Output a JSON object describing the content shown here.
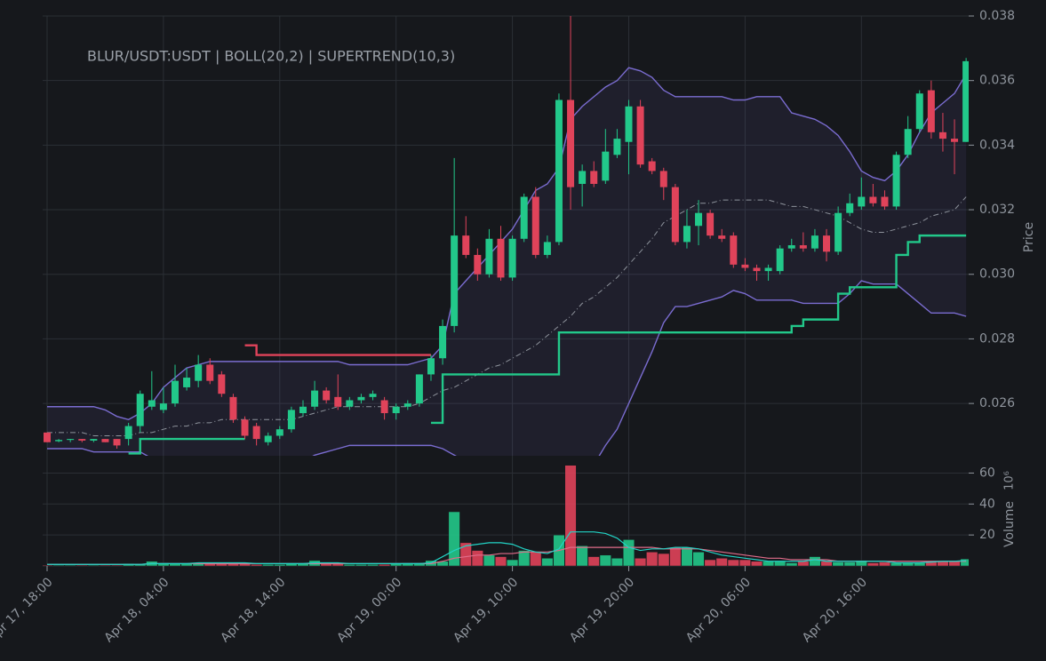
{
  "chart_data": {
    "type": "candlestick",
    "title": "BLUR/USDT:USDT | BOLL(20,2) | SUPERTREND(10,3)",
    "ylabel": "Price",
    "volume_label": "Volume",
    "volume_offset": "10⁶",
    "x": [
      "Apr 17, 18:00",
      "Apr 17, 19:00",
      "Apr 17, 20:00",
      "Apr 17, 21:00",
      "Apr 17, 22:00",
      "Apr 17, 23:00",
      "Apr 18, 00:00",
      "Apr 18, 01:00",
      "Apr 18, 02:00",
      "Apr 18, 03:00",
      "Apr 18, 04:00",
      "Apr 18, 05:00",
      "Apr 18, 06:00",
      "Apr 18, 07:00",
      "Apr 18, 08:00",
      "Apr 18, 09:00",
      "Apr 18, 10:00",
      "Apr 18, 11:00",
      "Apr 18, 12:00",
      "Apr 18, 13:00",
      "Apr 18, 14:00",
      "Apr 18, 15:00",
      "Apr 18, 16:00",
      "Apr 18, 17:00",
      "Apr 18, 18:00",
      "Apr 18, 19:00",
      "Apr 18, 20:00",
      "Apr 18, 21:00",
      "Apr 18, 22:00",
      "Apr 18, 23:00",
      "Apr 19, 00:00",
      "Apr 19, 01:00",
      "Apr 19, 02:00",
      "Apr 19, 03:00",
      "Apr 19, 04:00",
      "Apr 19, 05:00",
      "Apr 19, 06:00",
      "Apr 19, 07:00",
      "Apr 19, 08:00",
      "Apr 19, 09:00",
      "Apr 19, 10:00",
      "Apr 19, 11:00",
      "Apr 19, 12:00",
      "Apr 19, 13:00",
      "Apr 19, 14:00",
      "Apr 19, 15:00",
      "Apr 19, 16:00",
      "Apr 19, 17:00",
      "Apr 19, 18:00",
      "Apr 19, 19:00",
      "Apr 19, 20:00",
      "Apr 19, 21:00",
      "Apr 19, 22:00",
      "Apr 19, 23:00",
      "Apr 20, 00:00",
      "Apr 20, 01:00",
      "Apr 20, 02:00",
      "Apr 20, 03:00",
      "Apr 20, 04:00",
      "Apr 20, 05:00",
      "Apr 20, 06:00",
      "Apr 20, 07:00",
      "Apr 20, 08:00",
      "Apr 20, 09:00",
      "Apr 20, 10:00",
      "Apr 20, 11:00",
      "Apr 20, 12:00",
      "Apr 20, 13:00",
      "Apr 20, 14:00",
      "Apr 20, 15:00",
      "Apr 20, 16:00",
      "Apr 20, 17:00",
      "Apr 20, 18:00",
      "Apr 20, 19:00",
      "Apr 20, 20:00",
      "Apr 20, 21:00",
      "Apr 20, 22:00",
      "Apr 20, 23:00",
      "Apr 21, 00:00",
      "Apr 21, 01:00"
    ],
    "xticks": [
      "Apr 17, 18:00",
      "Apr 18, 04:00",
      "Apr 18, 14:00",
      "Apr 19, 00:00",
      "Apr 19, 10:00",
      "Apr 19, 20:00",
      "Apr 20, 06:00",
      "Apr 20, 16:00"
    ],
    "open": [
      0.0251,
      0.02483,
      0.02487,
      0.0249,
      0.02485,
      0.0249,
      0.0249,
      0.0249,
      0.0253,
      0.0259,
      0.0258,
      0.026,
      0.0265,
      0.0267,
      0.0272,
      0.0269,
      0.0262,
      0.0255,
      0.0253,
      0.0248,
      0.025,
      0.0252,
      0.0257,
      0.0259,
      0.0264,
      0.0262,
      0.0259,
      0.0261,
      0.0262,
      0.0261,
      0.0257,
      0.0259,
      0.026,
      0.0269,
      0.0274,
      0.0284,
      0.0312,
      0.0306,
      0.03,
      0.0311,
      0.0299,
      0.0311,
      0.0324,
      0.0306,
      0.031,
      0.0354,
      0.0328,
      0.0332,
      0.0329,
      0.0337,
      0.0341,
      0.0352,
      0.0335,
      0.0332,
      0.0327,
      0.031,
      0.0315,
      0.0319,
      0.0312,
      0.0312,
      0.0303,
      0.0302,
      0.0301,
      0.0301,
      0.0308,
      0.0309,
      0.0308,
      0.0312,
      0.0307,
      0.0319,
      0.0321,
      0.0324,
      0.0324,
      0.0321,
      0.0337,
      0.0345,
      0.0357,
      0.0344,
      0.0342,
      0.0341
    ],
    "high": [
      0.0251,
      0.0249,
      0.0249,
      0.0249,
      0.0249,
      0.0249,
      0.0249,
      0.0254,
      0.0264,
      0.027,
      0.0265,
      0.0272,
      0.0271,
      0.0275,
      0.0274,
      0.027,
      0.0263,
      0.0256,
      0.0254,
      0.0251,
      0.0253,
      0.0259,
      0.0261,
      0.0267,
      0.0265,
      0.0269,
      0.0262,
      0.0263,
      0.0264,
      0.0262,
      0.026,
      0.0261,
      0.0269,
      0.0275,
      0.0286,
      0.0336,
      0.0318,
      0.0308,
      0.0314,
      0.0315,
      0.0312,
      0.0325,
      0.0327,
      0.0312,
      0.0356,
      0.038,
      0.0334,
      0.0335,
      0.0345,
      0.0345,
      0.0354,
      0.0354,
      0.0336,
      0.0333,
      0.0328,
      0.032,
      0.0323,
      0.032,
      0.0314,
      0.0313,
      0.0305,
      0.0303,
      0.0303,
      0.0309,
      0.0311,
      0.0313,
      0.0314,
      0.0314,
      0.0321,
      0.0325,
      0.033,
      0.0328,
      0.0326,
      0.0338,
      0.0349,
      0.0357,
      0.036,
      0.035,
      0.0348,
      0.0367
    ],
    "low": [
      0.0248,
      0.0248,
      0.0248,
      0.0248,
      0.0248,
      0.0248,
      0.0246,
      0.0247,
      0.0251,
      0.0258,
      0.0257,
      0.0259,
      0.0264,
      0.0265,
      0.0266,
      0.0262,
      0.0254,
      0.0249,
      0.0247,
      0.0247,
      0.0249,
      0.0251,
      0.0256,
      0.0258,
      0.026,
      0.0258,
      0.0258,
      0.026,
      0.0261,
      0.0255,
      0.0255,
      0.0258,
      0.0259,
      0.0267,
      0.0272,
      0.0282,
      0.0305,
      0.0298,
      0.0299,
      0.0298,
      0.0298,
      0.031,
      0.0305,
      0.0305,
      0.0309,
      0.032,
      0.0321,
      0.0327,
      0.0328,
      0.0336,
      0.0331,
      0.0333,
      0.0331,
      0.0323,
      0.0309,
      0.0308,
      0.0309,
      0.0311,
      0.031,
      0.0302,
      0.0301,
      0.0298,
      0.0298,
      0.03,
      0.0307,
      0.0307,
      0.0307,
      0.0304,
      0.0306,
      0.0318,
      0.032,
      0.0321,
      0.032,
      0.032,
      0.0336,
      0.0344,
      0.0342,
      0.0338,
      0.0331,
      0.0341
    ],
    "close": [
      0.0248,
      0.02487,
      0.0249,
      0.02485,
      0.0249,
      0.0248,
      0.0247,
      0.0253,
      0.0263,
      0.0261,
      0.026,
      0.0267,
      0.0268,
      0.0272,
      0.0267,
      0.0263,
      0.0255,
      0.025,
      0.0249,
      0.025,
      0.0252,
      0.0258,
      0.0259,
      0.0264,
      0.0261,
      0.0259,
      0.0261,
      0.0262,
      0.0263,
      0.0257,
      0.0259,
      0.026,
      0.0269,
      0.0274,
      0.0284,
      0.0312,
      0.0306,
      0.03,
      0.0311,
      0.0299,
      0.0311,
      0.0324,
      0.0306,
      0.031,
      0.0354,
      0.0327,
      0.0332,
      0.0328,
      0.0338,
      0.0342,
      0.0352,
      0.0334,
      0.0332,
      0.0327,
      0.031,
      0.0315,
      0.0319,
      0.0312,
      0.0311,
      0.0303,
      0.0302,
      0.0301,
      0.0302,
      0.0308,
      0.0309,
      0.0308,
      0.0312,
      0.0307,
      0.0319,
      0.0322,
      0.0324,
      0.0322,
      0.0321,
      0.0337,
      0.0345,
      0.0356,
      0.0344,
      0.0342,
      0.0341,
      0.0366
    ],
    "boll_upper": [
      0.0259,
      0.0259,
      0.0259,
      0.0259,
      0.0259,
      0.0258,
      0.0256,
      0.0255,
      0.0257,
      0.026,
      0.0265,
      0.0268,
      0.0271,
      0.0272,
      0.0273,
      0.0273,
      0.0273,
      0.0273,
      0.0273,
      0.0273,
      0.0273,
      0.0273,
      0.0273,
      0.0273,
      0.0273,
      0.0273,
      0.0272,
      0.0272,
      0.0272,
      0.0272,
      0.0272,
      0.0272,
      0.0273,
      0.0274,
      0.0278,
      0.0294,
      0.0298,
      0.0302,
      0.0306,
      0.031,
      0.0314,
      0.032,
      0.0326,
      0.0328,
      0.0333,
      0.0348,
      0.0352,
      0.0355,
      0.0358,
      0.036,
      0.0364,
      0.0363,
      0.0361,
      0.0357,
      0.0355,
      0.0355,
      0.0355,
      0.0355,
      0.0355,
      0.0354,
      0.0354,
      0.0355,
      0.0355,
      0.0355,
      0.035,
      0.0349,
      0.0348,
      0.0346,
      0.0343,
      0.0338,
      0.0332,
      0.033,
      0.0329,
      0.0332,
      0.0337,
      0.0344,
      0.035,
      0.0353,
      0.0356,
      0.0362
    ],
    "boll_middle": [
      0.0251,
      0.0251,
      0.0251,
      0.0251,
      0.025,
      0.025,
      0.025,
      0.025,
      0.0251,
      0.0251,
      0.0252,
      0.0253,
      0.0253,
      0.0254,
      0.0254,
      0.0255,
      0.0255,
      0.0255,
      0.0255,
      0.0255,
      0.0255,
      0.0255,
      0.0256,
      0.0257,
      0.0258,
      0.0259,
      0.0259,
      0.0259,
      0.0259,
      0.0259,
      0.0259,
      0.0259,
      0.026,
      0.0262,
      0.0264,
      0.0265,
      0.0267,
      0.0269,
      0.0271,
      0.0272,
      0.0274,
      0.0276,
      0.0278,
      0.0281,
      0.0284,
      0.0287,
      0.0291,
      0.0293,
      0.0296,
      0.0299,
      0.0303,
      0.0307,
      0.0311,
      0.0316,
      0.0318,
      0.032,
      0.0322,
      0.0322,
      0.0323,
      0.0323,
      0.0323,
      0.0323,
      0.0323,
      0.0322,
      0.0321,
      0.0321,
      0.032,
      0.0319,
      0.0318,
      0.0316,
      0.0314,
      0.0313,
      0.0313,
      0.0314,
      0.0315,
      0.0316,
      0.0318,
      0.0319,
      0.032,
      0.0324
    ],
    "boll_lower": [
      0.0246,
      0.0246,
      0.0246,
      0.0246,
      0.0245,
      0.0245,
      0.0245,
      0.0245,
      0.0245,
      0.0243,
      0.024,
      0.0238,
      0.0236,
      0.0235,
      0.0234,
      0.0234,
      0.0235,
      0.0235,
      0.0236,
      0.0237,
      0.0237,
      0.0239,
      0.0242,
      0.0244,
      0.0245,
      0.0246,
      0.0247,
      0.0247,
      0.0247,
      0.0247,
      0.0247,
      0.0247,
      0.0247,
      0.0247,
      0.0246,
      0.0244,
      0.0242,
      0.024,
      0.0238,
      0.0237,
      0.0236,
      0.0234,
      0.0232,
      0.0231,
      0.023,
      0.0226,
      0.0224,
      0.0241,
      0.0247,
      0.0252,
      0.026,
      0.0268,
      0.0276,
      0.0285,
      0.029,
      0.029,
      0.0291,
      0.0292,
      0.0293,
      0.0295,
      0.0294,
      0.0292,
      0.0292,
      0.0292,
      0.0292,
      0.0291,
      0.0291,
      0.0291,
      0.0291,
      0.0294,
      0.0298,
      0.0297,
      0.0297,
      0.0297,
      0.0294,
      0.0291,
      0.0288,
      0.0288,
      0.0288,
      0.0287
    ],
    "supertrend_up": [
      null,
      null,
      null,
      null,
      null,
      null,
      null,
      0.02445,
      0.0249,
      0.0249,
      0.0249,
      0.0249,
      0.0249,
      0.0249,
      0.0249,
      0.0249,
      0.0249,
      0.0249,
      null,
      null,
      null,
      null,
      null,
      null,
      null,
      null,
      null,
      null,
      null,
      null,
      null,
      null,
      null,
      0.0254,
      0.0269,
      0.0269,
      0.0269,
      0.0269,
      0.0269,
      0.0269,
      0.0269,
      0.0269,
      0.0269,
      0.0269,
      0.0282,
      0.0282,
      0.0282,
      0.0282,
      0.0282,
      0.0282,
      0.0282,
      0.0282,
      0.0282,
      0.0282,
      0.0282,
      0.0282,
      0.0282,
      0.0282,
      0.0282,
      0.0282,
      0.0282,
      0.0282,
      0.0282,
      0.0282,
      0.0284,
      0.0286,
      0.0286,
      0.0286,
      0.0294,
      0.0296,
      0.0296,
      0.0296,
      0.0296,
      0.0306,
      0.031,
      0.0312,
      0.0312,
      0.0312,
      0.0312,
      0.0312
    ],
    "supertrend_down": [
      null,
      null,
      null,
      null,
      null,
      null,
      null,
      null,
      null,
      null,
      null,
      null,
      null,
      null,
      null,
      null,
      null,
      0.0278,
      0.0275,
      0.0275,
      0.0275,
      0.0275,
      0.0275,
      0.0275,
      0.0275,
      0.0275,
      0.0275,
      0.0275,
      0.0275,
      0.0275,
      0.0275,
      0.0275,
      0.0275,
      0.0275,
      null,
      null,
      null,
      null,
      null,
      null,
      null,
      null,
      null,
      null,
      null,
      null,
      null,
      null,
      null,
      null,
      null,
      null,
      null,
      null,
      null,
      null,
      null,
      null,
      null,
      null,
      null,
      null,
      null,
      null,
      null,
      null,
      null,
      null,
      null,
      null,
      null,
      null,
      null,
      null,
      null,
      null,
      null,
      null,
      null,
      null
    ],
    "volume": [
      0.5,
      0.5,
      0.5,
      0.5,
      0.5,
      0.5,
      0.5,
      1.5,
      1,
      3,
      2,
      1.5,
      1.5,
      2,
      2,
      1.5,
      2,
      1.5,
      1,
      1,
      1,
      1.5,
      1.5,
      3.5,
      2,
      1.5,
      1,
      1,
      1,
      1,
      1.5,
      2,
      2,
      3.5,
      3,
      35,
      15,
      10,
      7,
      6,
      4,
      10,
      9,
      5,
      20,
      65,
      13,
      6,
      7,
      5,
      17,
      5,
      9,
      8,
      12,
      12,
      9,
      4,
      5,
      4,
      4,
      3,
      3,
      3,
      2,
      3,
      6,
      3,
      2.5,
      2.5,
      3.5,
      2,
      2.5,
      2,
      2,
      2,
      3,
      3,
      3,
      4.5
    ],
    "volume_ma_fast": [
      1,
      1,
      1,
      1,
      1,
      1,
      1,
      1,
      1,
      1.5,
      1.5,
      1.5,
      1.5,
      2,
      2,
      2,
      2,
      2,
      1.5,
      1.5,
      1.5,
      1.5,
      1.5,
      2,
      2,
      2,
      1.5,
      1.5,
      1.5,
      1.5,
      1.5,
      1.5,
      1.5,
      2,
      6,
      10,
      13,
      14,
      15,
      15,
      14,
      11,
      9,
      8,
      11,
      22,
      22,
      22,
      21,
      18,
      12,
      10,
      11,
      11,
      12,
      12,
      11,
      9,
      7,
      6,
      5,
      4,
      3,
      3,
      3,
      3,
      4,
      3,
      3,
      3,
      3,
      3,
      3,
      2,
      2,
      2,
      2.5,
      3,
      3,
      3.5
    ],
    "volume_ma_slow": [
      1,
      1,
      1,
      1,
      1,
      1,
      1,
      1,
      1,
      1.5,
      1.5,
      1.5,
      1.5,
      1.5,
      1.5,
      1.5,
      1.5,
      1.5,
      1.5,
      1.5,
      1.5,
      1.5,
      1.5,
      1.5,
      1.5,
      1.5,
      1.5,
      1.5,
      1.5,
      1.5,
      1.5,
      1.5,
      1.5,
      1.5,
      3,
      5,
      6,
      7,
      7,
      8,
      8,
      9,
      9,
      9,
      10,
      12,
      12,
      12,
      12,
      12,
      12,
      12,
      12,
      11,
      11,
      11,
      11,
      10,
      9,
      8,
      7,
      6,
      5,
      5,
      4,
      4,
      4,
      4,
      3,
      3,
      3,
      3,
      3,
      3,
      3,
      3,
      3,
      3,
      3,
      3
    ],
    "ylim": [
      0.02438,
      0.038
    ],
    "yticks": [
      {
        "value": 0.026,
        "label": "0.026"
      },
      {
        "value": 0.028,
        "label": "0.028"
      },
      {
        "value": 0.03,
        "label": "0.030"
      },
      {
        "value": 0.032,
        "label": "0.032"
      },
      {
        "value": 0.034,
        "label": "0.034"
      },
      {
        "value": 0.036,
        "label": "0.036"
      },
      {
        "value": 0.038,
        "label": "0.038"
      }
    ],
    "volume_ylim": [
      0,
      66
    ],
    "volume_yticks": [
      20,
      40,
      60
    ],
    "up_color": "#22c88a",
    "down_color": "#e0435a",
    "band_color": "#7a6cd0",
    "middle_color": "#8e939c",
    "fast_ma_color": "#22d3c5",
    "slow_ma_color": "#e06c8a",
    "grid": true
  }
}
